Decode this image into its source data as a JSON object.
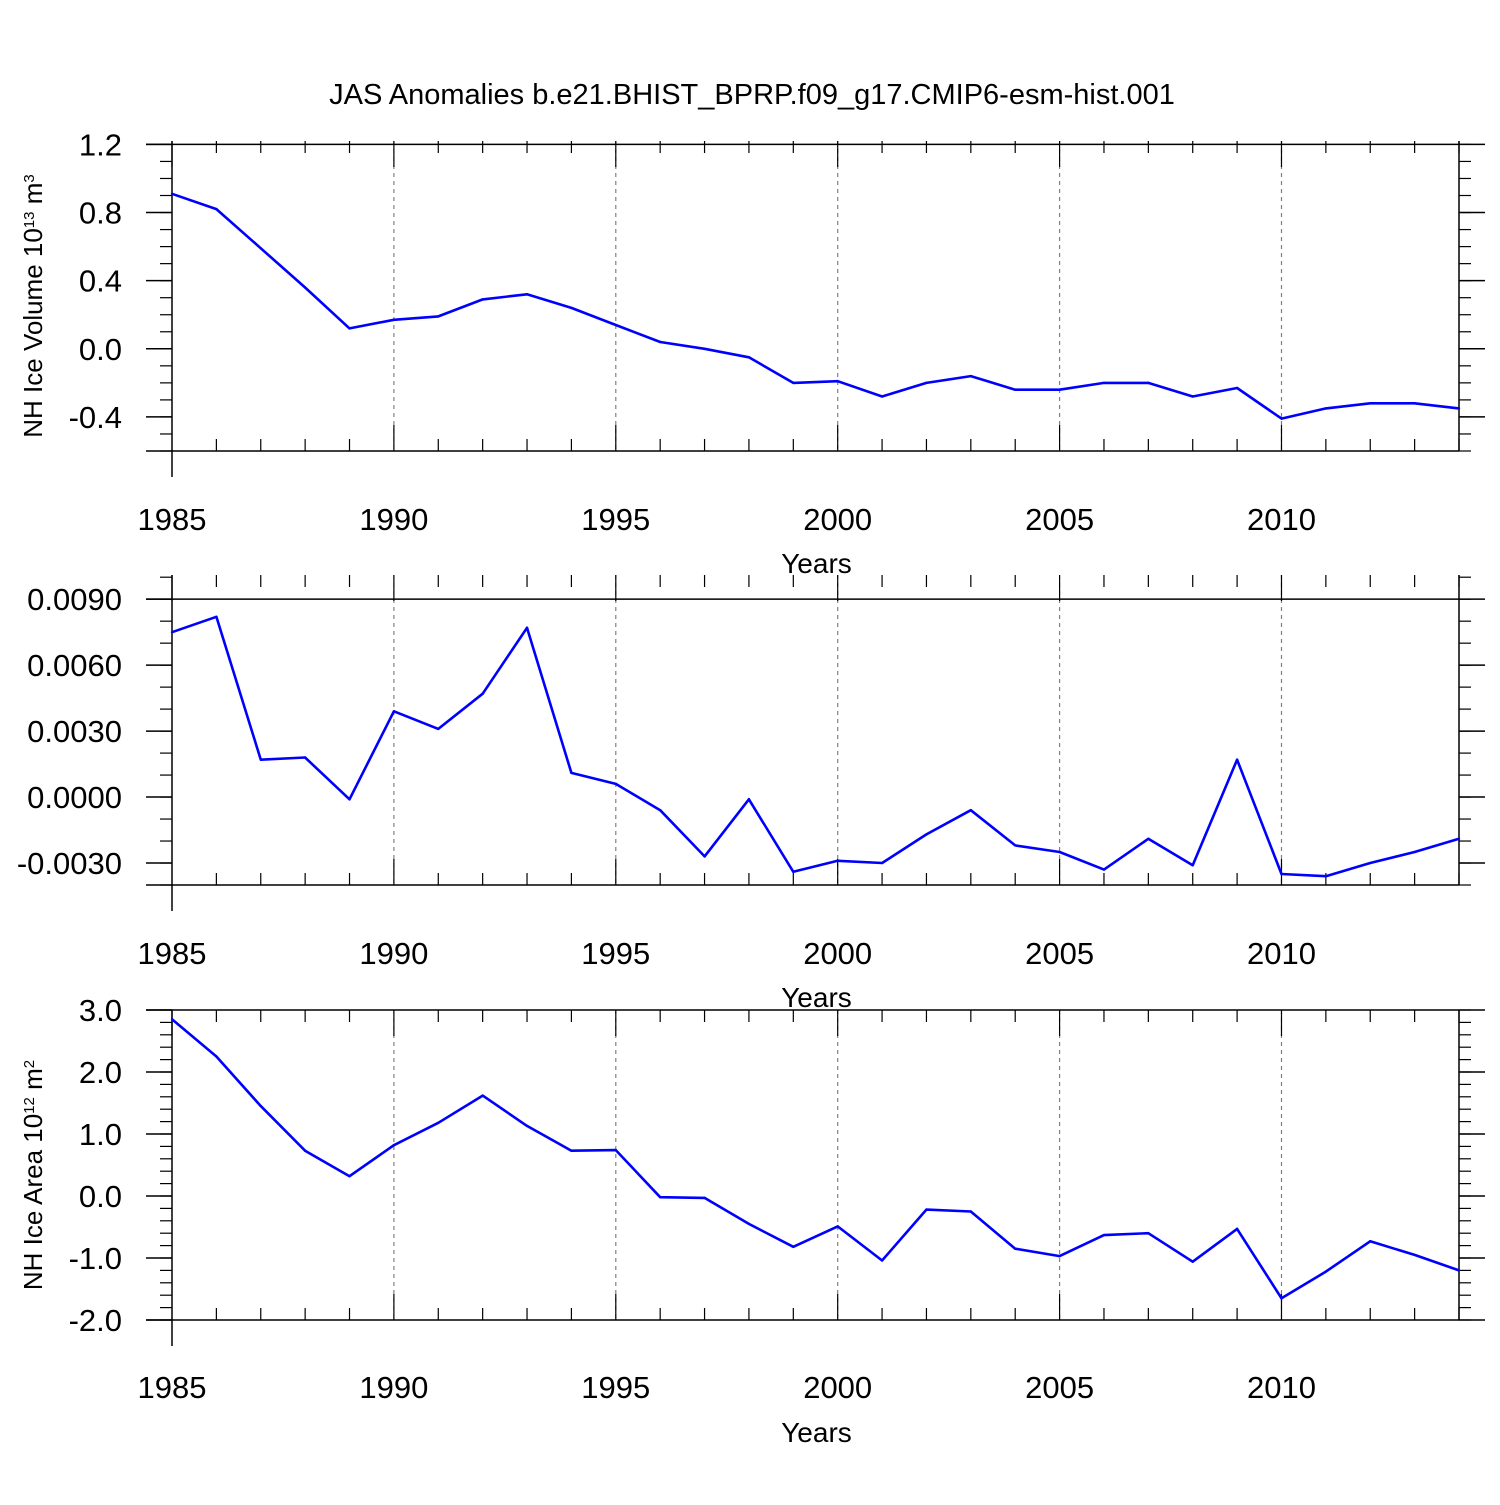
{
  "figure_title": "JAS Anomalies b.e21.BHIST_BPRP.f09_g17.CMIP6-esm-hist.001",
  "colors": {
    "line": "#0000ff",
    "axes": "#000000",
    "grid": "#808080"
  },
  "chart_data": [
    {
      "type": "line",
      "id": "volume",
      "xlabel": "Years",
      "ylabel": {
        "main": "NH Ice Volume 10",
        "sup": "13",
        "unit": " m",
        "unit_sup": "3"
      },
      "xlim": [
        1985,
        2014
      ],
      "ylim": [
        -0.6,
        1.22
      ],
      "xticks": [
        1985,
        1990,
        1995,
        2000,
        2005,
        2010
      ],
      "xtick_labels": [
        "1985",
        "1990",
        "1995",
        "2000",
        "2005",
        "2010"
      ],
      "yticks": [
        -0.4,
        0.0,
        0.4,
        0.8,
        1.2
      ],
      "ytick_labels": [
        "-0.4",
        "0.0",
        "0.4",
        "0.8",
        "1.2"
      ],
      "yminor_step": 0.1,
      "grid": "x-dashed",
      "x": [
        1985,
        1986,
        1987,
        1988,
        1989,
        1990,
        1991,
        1992,
        1993,
        1994,
        1995,
        1996,
        1997,
        1998,
        1999,
        2000,
        2001,
        2002,
        2003,
        2004,
        2005,
        2006,
        2007,
        2008,
        2009,
        2010,
        2011,
        2012,
        2013,
        2014
      ],
      "values": [
        0.91,
        0.82,
        0.59,
        0.36,
        0.12,
        0.17,
        0.19,
        0.29,
        0.32,
        0.24,
        0.14,
        0.04,
        0.0,
        -0.05,
        -0.2,
        -0.19,
        -0.28,
        -0.2,
        -0.16,
        -0.24,
        -0.24,
        -0.2,
        -0.2,
        -0.28,
        -0.23,
        -0.41,
        -0.35,
        -0.32,
        -0.32,
        -0.35
      ]
    },
    {
      "type": "line",
      "id": "middle",
      "xlabel": "Years",
      "ylabel": null,
      "xlim": [
        1985,
        2014
      ],
      "ylim": [
        -0.004,
        0.0101
      ],
      "xticks": [
        1985,
        1990,
        1995,
        2000,
        2005,
        2010
      ],
      "xtick_labels": [
        "1985",
        "1990",
        "1995",
        "2000",
        "2005",
        "2010"
      ],
      "yticks": [
        -0.003,
        0.0,
        0.003,
        0.006,
        0.009
      ],
      "ytick_labels": [
        "-0.0030",
        "0.0000",
        "0.0030",
        "0.0060",
        "0.0090"
      ],
      "yminor_step": 0.001,
      "grid": "x-dashed",
      "x": [
        1985,
        1986,
        1987,
        1988,
        1989,
        1990,
        1991,
        1992,
        1993,
        1994,
        1995,
        1996,
        1997,
        1998,
        1999,
        2000,
        2001,
        2002,
        2003,
        2004,
        2005,
        2006,
        2007,
        2008,
        2009,
        2010,
        2011,
        2012,
        2013,
        2014
      ],
      "values": [
        0.0075,
        0.0082,
        0.0017,
        0.0018,
        -0.0001,
        0.0039,
        0.0031,
        0.0047,
        0.0077,
        0.0011,
        0.0006,
        -0.0006,
        -0.0027,
        -0.0001,
        -0.0034,
        -0.0029,
        -0.003,
        -0.0017,
        -0.0006,
        -0.0022,
        -0.0025,
        -0.0033,
        -0.0019,
        -0.0031,
        0.0017,
        -0.0035,
        -0.0036,
        -0.003,
        -0.0025,
        -0.0019
      ]
    },
    {
      "type": "line",
      "id": "area",
      "xlabel": "Years",
      "ylabel": {
        "main": "NH Ice Area 10",
        "sup": "12",
        "unit": " m",
        "unit_sup": "2"
      },
      "xlim": [
        1985,
        2014
      ],
      "ylim": [
        -2.0,
        3.0
      ],
      "xticks": [
        1985,
        1990,
        1995,
        2000,
        2005,
        2010
      ],
      "xtick_labels": [
        "1985",
        "1990",
        "1995",
        "2000",
        "2005",
        "2010"
      ],
      "yticks": [
        -2.0,
        -1.0,
        0.0,
        1.0,
        2.0,
        3.0
      ],
      "ytick_labels": [
        "-2.0",
        "-1.0",
        "0.0",
        "1.0",
        "2.0",
        "3.0"
      ],
      "yminor_step": 0.2,
      "grid": "x-dashed",
      "x": [
        1985,
        1986,
        1987,
        1988,
        1989,
        1990,
        1991,
        1992,
        1993,
        1994,
        1995,
        1996,
        1997,
        1998,
        1999,
        2000,
        2001,
        2002,
        2003,
        2004,
        2005,
        2006,
        2007,
        2008,
        2009,
        2010,
        2011,
        2012,
        2013,
        2014
      ],
      "values": [
        2.85,
        2.25,
        1.45,
        0.73,
        0.32,
        0.82,
        1.18,
        1.62,
        1.13,
        0.73,
        0.74,
        -0.02,
        -0.03,
        -0.45,
        -0.82,
        -0.49,
        -1.04,
        -0.22,
        -0.25,
        -0.85,
        -0.97,
        -0.63,
        -0.6,
        -1.06,
        -0.53,
        -1.65,
        -1.22,
        -0.73,
        -0.95,
        -1.2
      ]
    }
  ]
}
